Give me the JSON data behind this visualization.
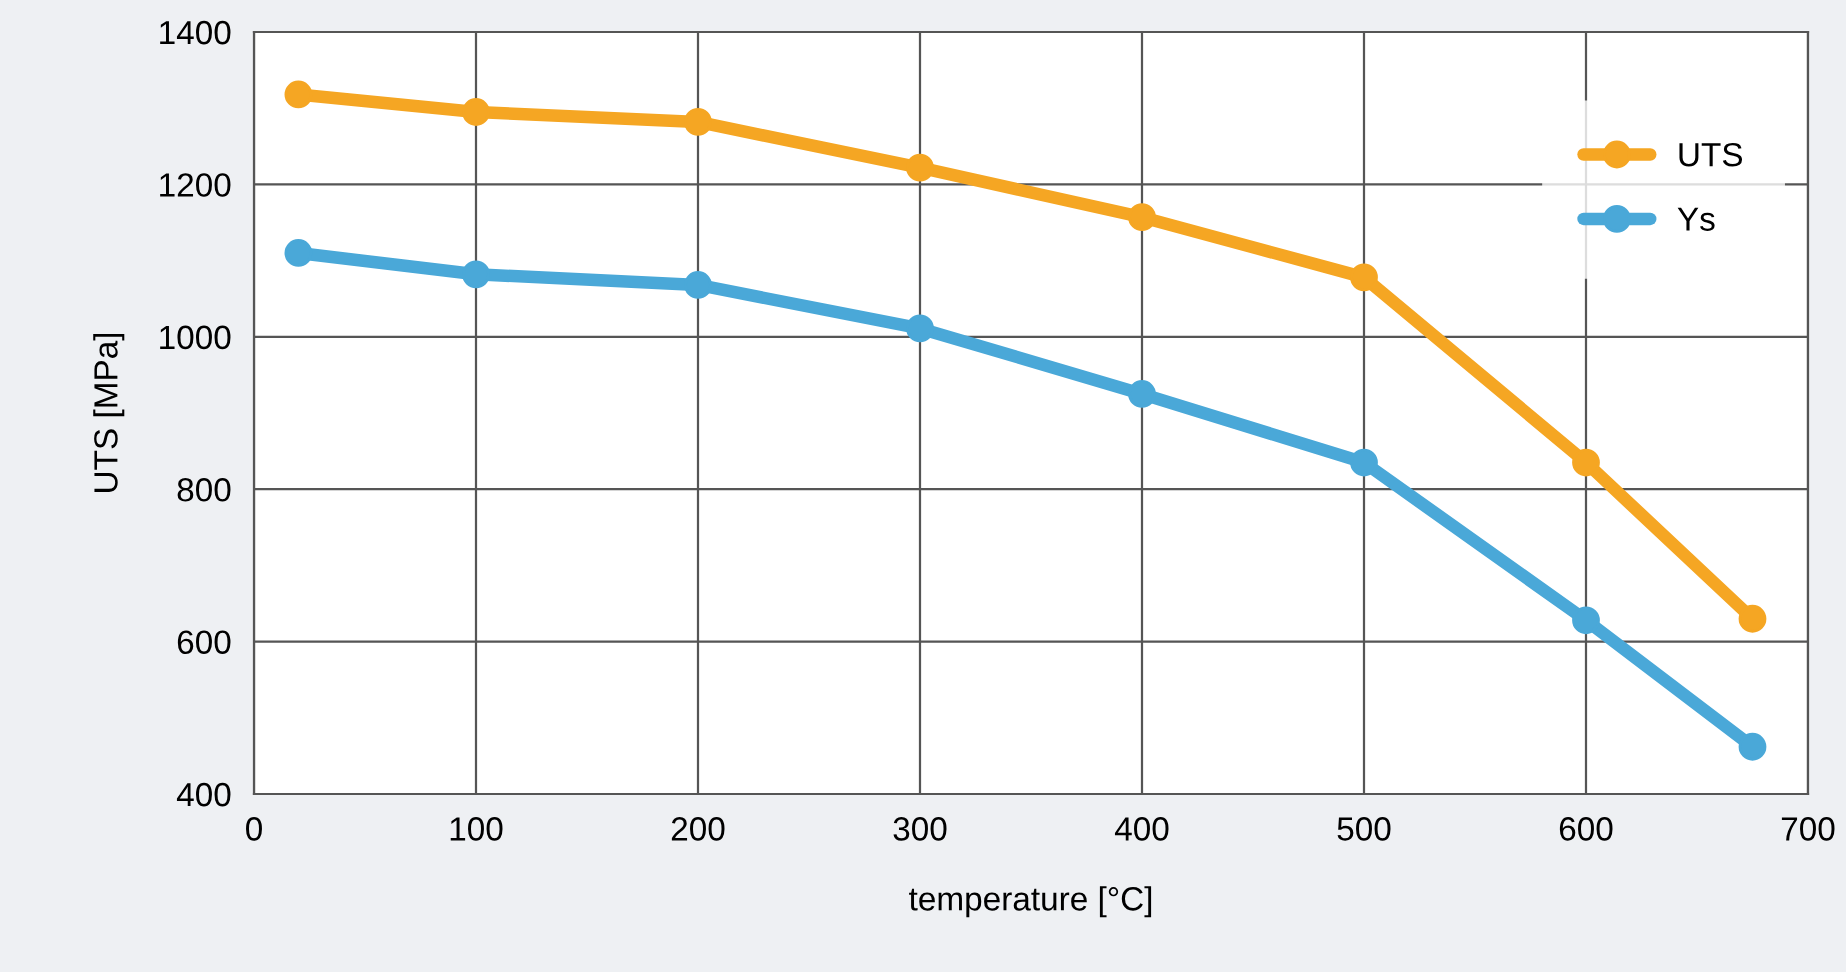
{
  "chart_data": {
    "type": "line",
    "xlabel": "temperature [°C]",
    "ylabel": "UTS [MPa]",
    "xlim": [
      0,
      700
    ],
    "xticks": [
      0,
      100,
      200,
      300,
      400,
      500,
      600,
      700
    ],
    "ylim": [
      400,
      1400
    ],
    "yticks": [
      400,
      600,
      800,
      1000,
      1200,
      1400
    ],
    "x": [
      20,
      100,
      200,
      300,
      400,
      500,
      600,
      675
    ],
    "series": [
      {
        "name": "UTS",
        "color": "#f5a623",
        "values": [
          1318,
          1295,
          1282,
          1222,
          1157,
          1078,
          835,
          630
        ]
      },
      {
        "name": "Ys",
        "color": "#4aa8d8",
        "values": [
          1110,
          1082,
          1068,
          1011,
          925,
          835,
          628,
          462
        ]
      }
    ],
    "marker": "circle",
    "line_style": "solid",
    "grid": true,
    "legend": "top right"
  }
}
